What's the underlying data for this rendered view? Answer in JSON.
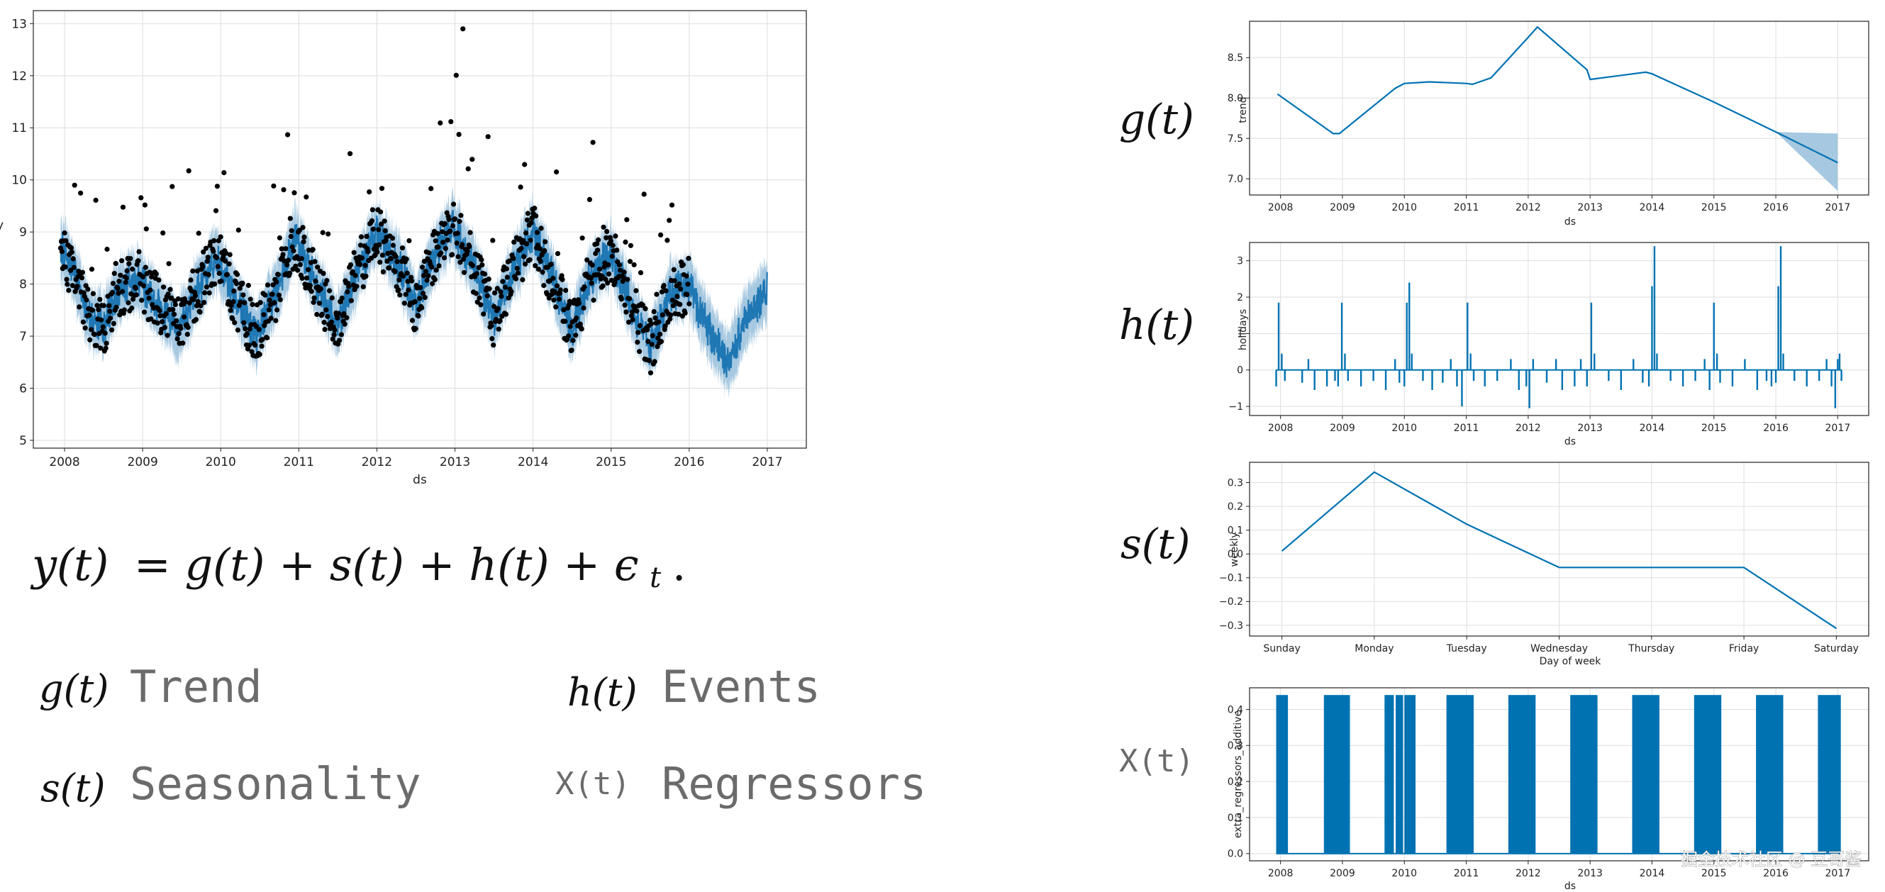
{
  "colors": {
    "model": "#1f77b4",
    "line": "#0072b2",
    "band": "#a6c8e0",
    "points": "#000000",
    "grid": "#dddddd"
  },
  "formula": {
    "lhs": "y(t)",
    "rhs": "= g(t) + s(t) + h(t) + ",
    "eps": "ϵ",
    "eps_sub": "t",
    "end": "."
  },
  "legend_terms": [
    {
      "symbol": "g(t)",
      "label": "Trend"
    },
    {
      "symbol": "h(t)",
      "label": "Events"
    },
    {
      "symbol": "s(t)",
      "label": "Seasonality"
    },
    {
      "symbol": "X(t)",
      "label": "Regressors"
    }
  ],
  "component_symbols": [
    "g(t)",
    "h(t)",
    "s(t)",
    "X(t)"
  ],
  "watermark": "掘金技术社区 @ 豆哥酱",
  "chart_data": [
    {
      "id": "forecast",
      "type": "scatter",
      "xlabel": "ds",
      "ylabel": "y",
      "xlim": [
        2007.6,
        2017.5
      ],
      "ylim": [
        4.85,
        13.25
      ],
      "xticks": [
        "2008",
        "2009",
        "2010",
        "2011",
        "2012",
        "2013",
        "2014",
        "2015",
        "2016",
        "2017"
      ],
      "yticks": [
        "5",
        "6",
        "7",
        "8",
        "9",
        "10",
        "11",
        "12",
        "13"
      ],
      "yhat_centerline": {
        "x": [
          2008.0,
          2008.15,
          2008.3,
          2008.5,
          2008.7,
          2008.95,
          2009.2,
          2009.45,
          2009.7,
          2009.95,
          2010.2,
          2010.45,
          2010.75,
          2010.95,
          2011.25,
          2011.5,
          2011.75,
          2011.98,
          2012.3,
          2012.5,
          2012.75,
          2012.97,
          2013.25,
          2013.5,
          2013.75,
          2014.0,
          2014.25,
          2014.5,
          2014.75,
          2015.0,
          2015.25,
          2015.5,
          2015.75,
          2016.0,
          2016.25,
          2016.5,
          2016.75,
          2017.0
        ],
        "y": [
          8.6,
          8.1,
          7.4,
          7.2,
          7.9,
          8.1,
          7.6,
          7.1,
          7.9,
          8.5,
          7.7,
          7.0,
          8.0,
          8.9,
          7.9,
          7.2,
          8.2,
          9.0,
          8.3,
          7.6,
          8.6,
          9.1,
          8.3,
          7.3,
          8.3,
          9.0,
          8.1,
          7.1,
          8.2,
          8.6,
          7.6,
          6.8,
          7.8,
          8.0,
          7.1,
          6.5,
          7.4,
          7.9
        ]
      },
      "yhat_band_halfwidth": 0.55,
      "history_end": 2016.0
    },
    {
      "id": "trend",
      "type": "line",
      "xlabel": "ds",
      "ylabel": "trend",
      "xlim": [
        2007.5,
        2017.5
      ],
      "ylim": [
        6.8,
        8.95
      ],
      "xticks": [
        "2008",
        "2009",
        "2010",
        "2011",
        "2012",
        "2013",
        "2014",
        "2015",
        "2016",
        "2017"
      ],
      "yticks": [
        "7.0",
        "7.5",
        "8.0",
        "8.5"
      ],
      "x": [
        2007.95,
        2008.85,
        2008.95,
        2009.85,
        2010.0,
        2010.4,
        2011.0,
        2011.1,
        2011.4,
        2012.0,
        2012.15,
        2012.95,
        2013.0,
        2013.9,
        2014.0,
        2015.0,
        2016.0,
        2017.0
      ],
      "values": [
        8.05,
        7.56,
        7.56,
        8.12,
        8.18,
        8.2,
        8.18,
        8.17,
        8.25,
        8.75,
        8.88,
        8.35,
        8.23,
        8.32,
        8.3,
        7.95,
        7.58,
        7.2
      ],
      "uncertainty_from": 2016.0,
      "uncertainty_end": [
        6.85,
        7.56
      ]
    },
    {
      "id": "holidays",
      "type": "bar",
      "xlabel": "ds",
      "ylabel": "holidays",
      "xlim": [
        2007.5,
        2017.5
      ],
      "ylim": [
        -1.25,
        3.5
      ],
      "xticks": [
        "2008",
        "2009",
        "2010",
        "2011",
        "2012",
        "2013",
        "2014",
        "2015",
        "2016",
        "2017"
      ],
      "yticks": [
        "−1",
        "0",
        "1",
        "2",
        "3"
      ],
      "events": [
        {
          "x": 2007.93,
          "v": -0.45
        },
        {
          "x": 2007.97,
          "v": 1.85
        },
        {
          "x": 2008.02,
          "v": 0.45
        },
        {
          "x": 2008.07,
          "v": -0.3
        },
        {
          "x": 2008.35,
          "v": -0.35
        },
        {
          "x": 2008.45,
          "v": 0.3
        },
        {
          "x": 2008.55,
          "v": -0.55
        },
        {
          "x": 2008.75,
          "v": -0.45
        },
        {
          "x": 2008.88,
          "v": -0.3
        },
        {
          "x": 2008.93,
          "v": -0.45
        },
        {
          "x": 2008.99,
          "v": 1.85
        },
        {
          "x": 2009.04,
          "v": 0.45
        },
        {
          "x": 2009.09,
          "v": -0.3
        },
        {
          "x": 2009.3,
          "v": -0.45
        },
        {
          "x": 2009.5,
          "v": -0.3
        },
        {
          "x": 2009.7,
          "v": -0.55
        },
        {
          "x": 2009.85,
          "v": 0.3
        },
        {
          "x": 2009.92,
          "v": -0.35
        },
        {
          "x": 2010.0,
          "v": -0.45
        },
        {
          "x": 2010.04,
          "v": 1.85
        },
        {
          "x": 2010.08,
          "v": 2.4
        },
        {
          "x": 2010.12,
          "v": 0.45
        },
        {
          "x": 2010.3,
          "v": -0.3
        },
        {
          "x": 2010.45,
          "v": -0.55
        },
        {
          "x": 2010.62,
          "v": -0.35
        },
        {
          "x": 2010.75,
          "v": 0.3
        },
        {
          "x": 2010.85,
          "v": -0.45
        },
        {
          "x": 2010.93,
          "v": -1.0
        },
        {
          "x": 2011.02,
          "v": 1.85
        },
        {
          "x": 2011.07,
          "v": 0.45
        },
        {
          "x": 2011.12,
          "v": -0.3
        },
        {
          "x": 2011.3,
          "v": -0.45
        },
        {
          "x": 2011.5,
          "v": -0.3
        },
        {
          "x": 2011.72,
          "v": 0.3
        },
        {
          "x": 2011.85,
          "v": -0.55
        },
        {
          "x": 2011.97,
          "v": -0.45
        },
        {
          "x": 2012.02,
          "v": -1.05
        },
        {
          "x": 2012.08,
          "v": 0.3
        },
        {
          "x": 2012.3,
          "v": -0.35
        },
        {
          "x": 2012.45,
          "v": 0.3
        },
        {
          "x": 2012.55,
          "v": -0.55
        },
        {
          "x": 2012.75,
          "v": -0.45
        },
        {
          "x": 2012.85,
          "v": 0.3
        },
        {
          "x": 2012.95,
          "v": -0.45
        },
        {
          "x": 2013.02,
          "v": 1.85
        },
        {
          "x": 2013.07,
          "v": 0.45
        },
        {
          "x": 2013.3,
          "v": -0.3
        },
        {
          "x": 2013.5,
          "v": -0.55
        },
        {
          "x": 2013.7,
          "v": 0.3
        },
        {
          "x": 2013.85,
          "v": -0.35
        },
        {
          "x": 2013.95,
          "v": -0.45
        },
        {
          "x": 2014.0,
          "v": 2.3
        },
        {
          "x": 2014.04,
          "v": 3.4
        },
        {
          "x": 2014.08,
          "v": 0.45
        },
        {
          "x": 2014.3,
          "v": -0.3
        },
        {
          "x": 2014.5,
          "v": -0.45
        },
        {
          "x": 2014.7,
          "v": -0.3
        },
        {
          "x": 2014.85,
          "v": 0.3
        },
        {
          "x": 2014.93,
          "v": -0.55
        },
        {
          "x": 2015.0,
          "v": 1.85
        },
        {
          "x": 2015.05,
          "v": 0.45
        },
        {
          "x": 2015.1,
          "v": -0.35
        },
        {
          "x": 2015.3,
          "v": -0.45
        },
        {
          "x": 2015.5,
          "v": 0.3
        },
        {
          "x": 2015.7,
          "v": -0.55
        },
        {
          "x": 2015.85,
          "v": -0.3
        },
        {
          "x": 2015.93,
          "v": -0.45
        },
        {
          "x": 2016.0,
          "v": -0.35
        },
        {
          "x": 2016.04,
          "v": 2.3
        },
        {
          "x": 2016.08,
          "v": 3.4
        },
        {
          "x": 2016.12,
          "v": 0.45
        },
        {
          "x": 2016.3,
          "v": -0.3
        },
        {
          "x": 2016.5,
          "v": -0.45
        },
        {
          "x": 2016.7,
          "v": -0.3
        },
        {
          "x": 2016.82,
          "v": 0.3
        },
        {
          "x": 2016.9,
          "v": -0.45
        },
        {
          "x": 2016.96,
          "v": -1.05
        },
        {
          "x": 2017.0,
          "v": 0.3
        },
        {
          "x": 2017.03,
          "v": 0.45
        },
        {
          "x": 2017.06,
          "v": -0.3
        }
      ]
    },
    {
      "id": "weekly",
      "type": "line",
      "xlabel": "Day of week",
      "ylabel": "weekly",
      "categories": [
        "Sunday",
        "Monday",
        "Tuesday",
        "Wednesday",
        "Thursday",
        "Friday",
        "Saturday"
      ],
      "values": [
        0.012,
        0.344,
        0.125,
        -0.057,
        -0.057,
        -0.057,
        -0.313
      ],
      "ylim": [
        -0.345,
        0.385
      ],
      "yticks": [
        "0.3",
        "0.2",
        "0.1",
        "0.0",
        "−0.1",
        "−0.2",
        "−0.3"
      ]
    },
    {
      "id": "extra_regressors",
      "type": "bar",
      "xlabel": "ds",
      "ylabel": "extra_regressors_additive",
      "xlim": [
        2007.5,
        2017.5
      ],
      "ylim": [
        -0.02,
        0.46
      ],
      "xticks": [
        "2008",
        "2009",
        "2010",
        "2011",
        "2012",
        "2013",
        "2014",
        "2015",
        "2016",
        "2017"
      ],
      "yticks": [
        "0.0",
        "0.1",
        "0.2",
        "0.3",
        "0.4"
      ],
      "active_value": 0.44,
      "active_periods": [
        [
          2007.93,
          2008.12
        ],
        [
          2008.7,
          2009.12
        ],
        [
          2009.68,
          2009.83
        ],
        [
          2009.86,
          2009.98
        ],
        [
          2010.0,
          2010.18
        ],
        [
          2010.68,
          2011.12
        ],
        [
          2011.68,
          2012.12
        ],
        [
          2012.68,
          2013.12
        ],
        [
          2013.68,
          2014.12
        ],
        [
          2014.68,
          2015.12
        ],
        [
          2015.68,
          2016.12
        ],
        [
          2016.68,
          2017.05
        ]
      ]
    }
  ]
}
